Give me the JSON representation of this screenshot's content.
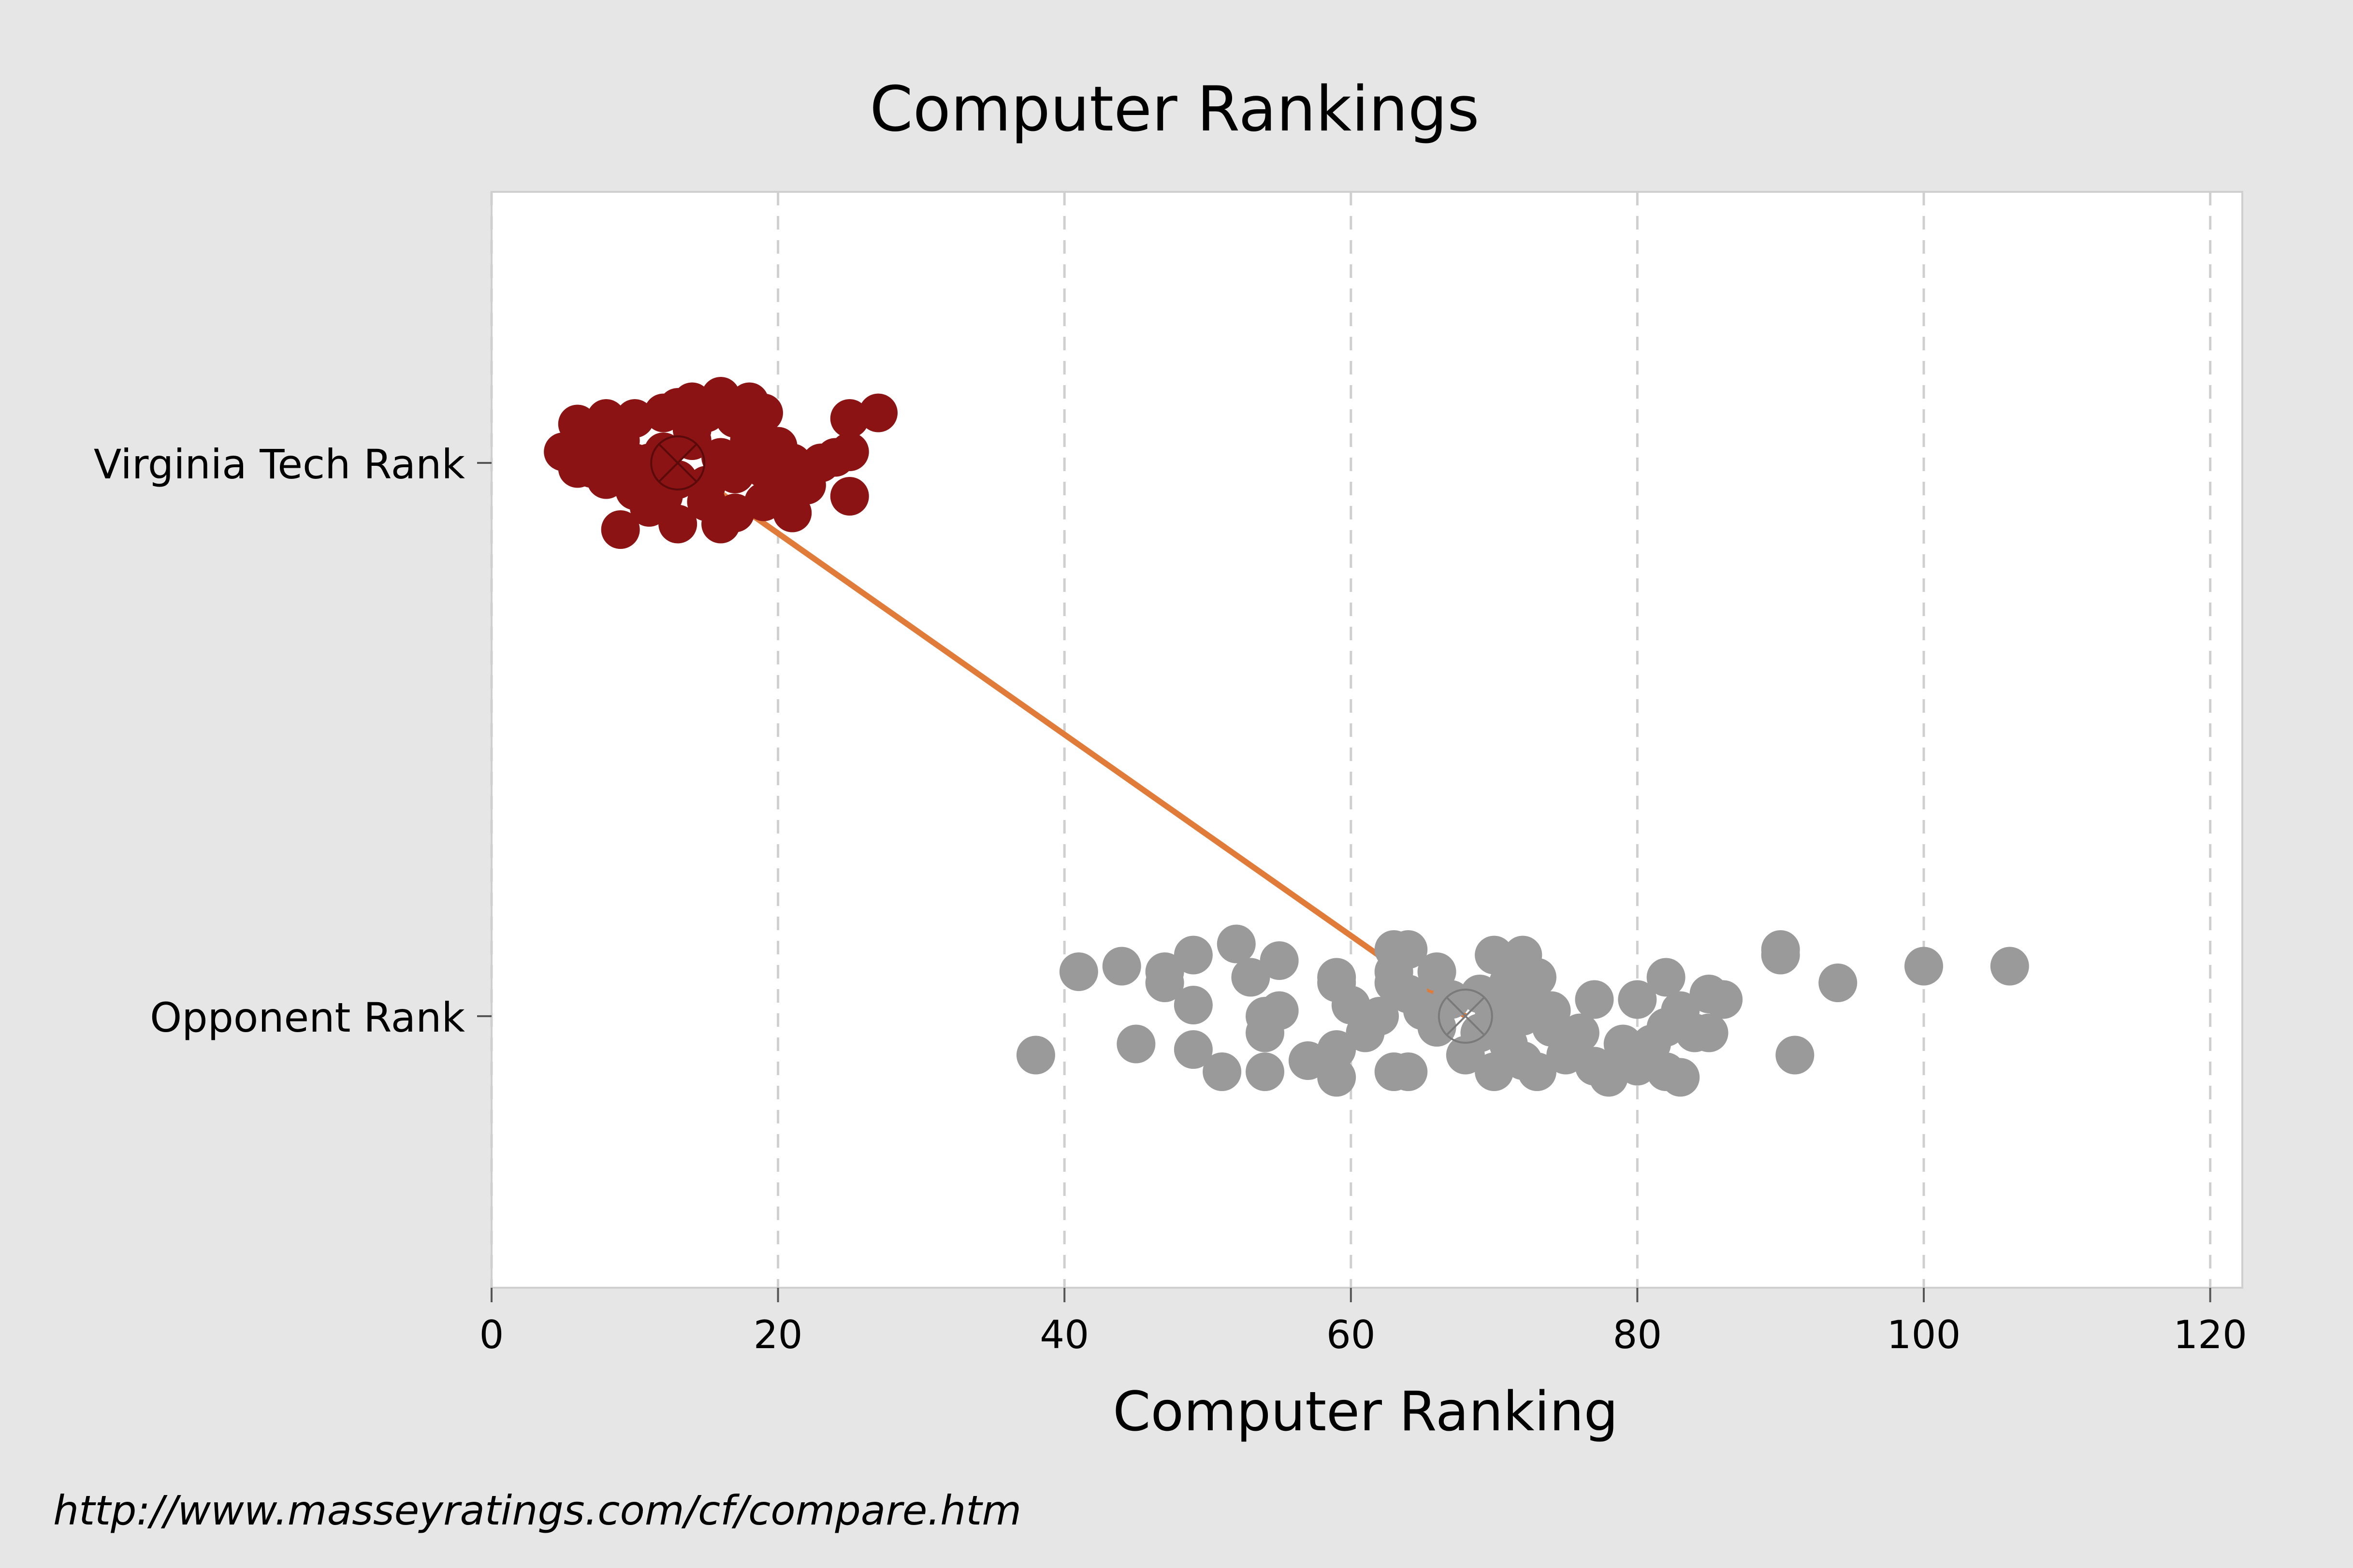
{
  "chart_data": {
    "type": "scatter",
    "title": "Computer Rankings",
    "xlabel": "Computer Ranking",
    "ylabel": "",
    "xlim": [
      0,
      122
    ],
    "xticks": [
      0,
      20,
      40,
      60,
      80,
      100,
      120
    ],
    "categories": [
      "Virginia Tech Rank",
      "Opponent Rank"
    ],
    "grid": "vertical dashed",
    "series": [
      {
        "category": "Virginia Tech Rank",
        "color": "#8b1313",
        "mean": 13,
        "points": [
          [
            5,
            0.02
          ],
          [
            6,
            0.07
          ],
          [
            7,
            -0.01
          ],
          [
            8,
            0.08
          ],
          [
            9,
            0.0
          ],
          [
            10,
            0.08
          ],
          [
            11,
            0.0
          ],
          [
            12,
            0.09
          ],
          [
            13,
            0.1
          ],
          [
            14,
            0.11
          ],
          [
            15,
            0.09
          ],
          [
            16,
            0.12
          ],
          [
            17,
            0.08
          ],
          [
            18,
            0.11
          ],
          [
            19,
            0.09
          ],
          [
            6,
            -0.01
          ],
          [
            7,
            0.03
          ],
          [
            8,
            -0.03
          ],
          [
            9,
            0.04
          ],
          [
            10,
            -0.05
          ],
          [
            11,
            -0.02
          ],
          [
            12,
            0.02
          ],
          [
            13,
            -0.03
          ],
          [
            14,
            0.04
          ],
          [
            15,
            -0.04
          ],
          [
            16,
            0.01
          ],
          [
            17,
            -0.02
          ],
          [
            18,
            0.04
          ],
          [
            19,
            -0.01
          ],
          [
            20,
            0.03
          ],
          [
            21,
            0.0
          ],
          [
            22,
            -0.04
          ],
          [
            23,
            0.0
          ],
          [
            24,
            0.01
          ],
          [
            25,
            0.02
          ],
          [
            25,
            -0.06
          ],
          [
            25,
            0.08
          ],
          [
            27,
            0.09
          ],
          [
            9,
            -0.12
          ],
          [
            11,
            -0.08
          ],
          [
            13,
            -0.11
          ],
          [
            15,
            -0.07
          ],
          [
            16,
            -0.11
          ],
          [
            17,
            -0.09
          ],
          [
            19,
            -0.07
          ],
          [
            21,
            -0.09
          ],
          [
            10,
            0.0
          ],
          [
            12,
            -0.06
          ],
          [
            14,
            0.06
          ],
          [
            8,
            0.05
          ],
          [
            18,
            0.02
          ],
          [
            20,
            -0.05
          ]
        ]
      },
      {
        "category": "Opponent Rank",
        "color": "#9a9a9a",
        "mean": 68,
        "points": [
          [
            38,
            -0.07
          ],
          [
            41,
            0.08
          ],
          [
            44,
            0.09
          ],
          [
            45,
            -0.05
          ],
          [
            47,
            0.06
          ],
          [
            47,
            0.08
          ],
          [
            49,
            0.11
          ],
          [
            49,
            0.02
          ],
          [
            49,
            -0.06
          ],
          [
            51,
            -0.1
          ],
          [
            52,
            0.13
          ],
          [
            53,
            0.07
          ],
          [
            54,
            -0.1
          ],
          [
            54,
            -0.03
          ],
          [
            54,
            0.0
          ],
          [
            55,
            0.1
          ],
          [
            55,
            0.01
          ],
          [
            57,
            -0.08
          ],
          [
            59,
            0.07
          ],
          [
            59,
            0.06
          ],
          [
            59,
            -0.06
          ],
          [
            59,
            -0.11
          ],
          [
            60,
            0.02
          ],
          [
            61,
            -0.03
          ],
          [
            62,
            0.0
          ],
          [
            63,
            0.12
          ],
          [
            63,
            0.08
          ],
          [
            63,
            0.06
          ],
          [
            63,
            -0.1
          ],
          [
            64,
            0.12
          ],
          [
            64,
            -0.1
          ],
          [
            64,
            0.04
          ],
          [
            65,
            0.01
          ],
          [
            66,
            0.08
          ],
          [
            66,
            -0.02
          ],
          [
            67,
            0.03
          ],
          [
            68,
            -0.07
          ],
          [
            69,
            0.04
          ],
          [
            69,
            -0.03
          ],
          [
            70,
            0.11
          ],
          [
            70,
            0.01
          ],
          [
            70,
            -0.1
          ],
          [
            71,
            0.06
          ],
          [
            71,
            -0.05
          ],
          [
            72,
            0.11
          ],
          [
            72,
            0.0
          ],
          [
            72,
            -0.08
          ],
          [
            73,
            0.07
          ],
          [
            73,
            -0.1
          ],
          [
            73,
            0.02
          ],
          [
            74,
            -0.02
          ],
          [
            74,
            0.01
          ],
          [
            75,
            -0.07
          ],
          [
            76,
            -0.03
          ],
          [
            77,
            0.03
          ],
          [
            77,
            -0.09
          ],
          [
            78,
            -0.11
          ],
          [
            79,
            -0.05
          ],
          [
            80,
            0.03
          ],
          [
            80,
            -0.09
          ],
          [
            81,
            -0.05
          ],
          [
            82,
            0.07
          ],
          [
            82,
            -0.02
          ],
          [
            82,
            -0.1
          ],
          [
            83,
            0.01
          ],
          [
            83,
            -0.11
          ],
          [
            84,
            -0.03
          ],
          [
            85,
            0.04
          ],
          [
            85,
            -0.03
          ],
          [
            86,
            0.03
          ],
          [
            90,
            0.11
          ],
          [
            90,
            0.12
          ],
          [
            91,
            -0.07
          ],
          [
            94,
            0.06
          ],
          [
            100,
            0.09
          ],
          [
            106,
            0.09
          ]
        ]
      }
    ]
  },
  "source_text": "http://www.masseyratings.com/cf/compare.htm"
}
